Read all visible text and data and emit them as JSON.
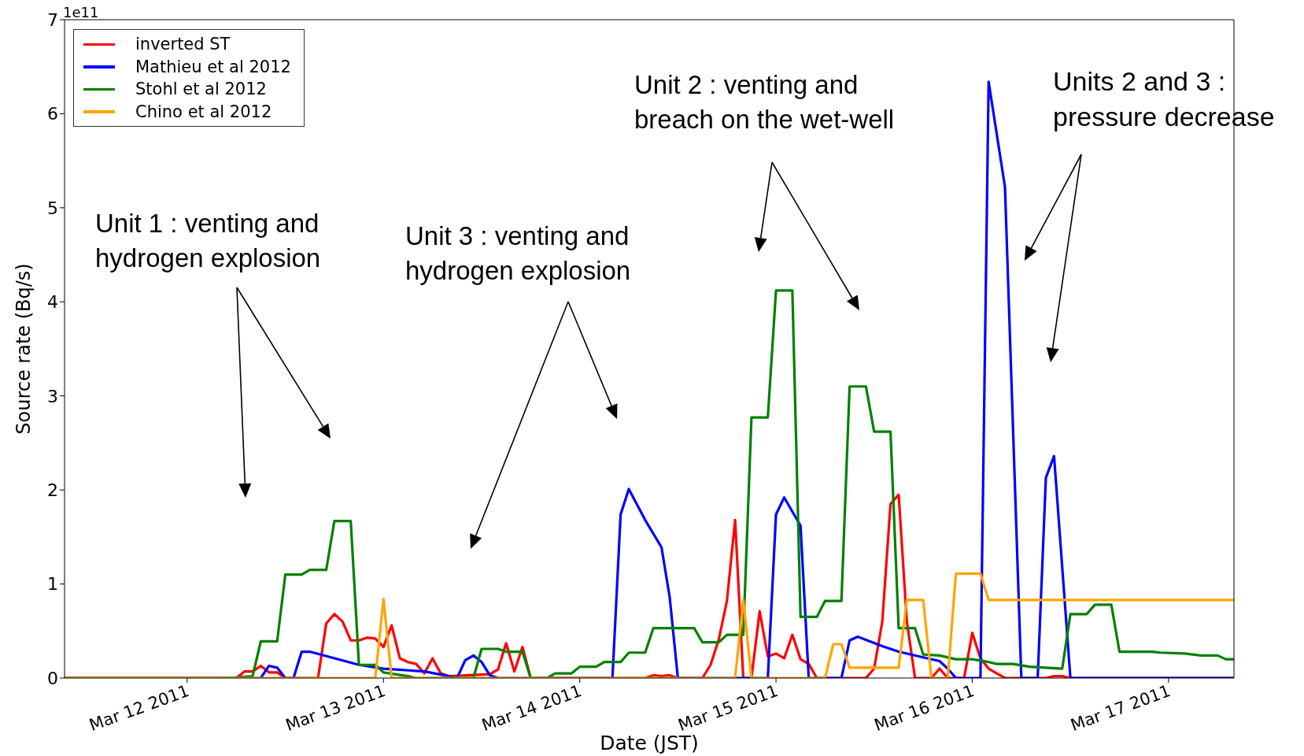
{
  "chart_data": {
    "type": "line",
    "xlabel": "Date (JST)",
    "ylabel": "Source rate (Bq/s)",
    "legend": "top left",
    "marker": "none",
    "xlim": [
      "2011-03-11T09:00",
      "2011-03-17T08:00"
    ],
    "ylim": [
      0,
      7
    ],
    "xticks": [
      {
        "value": "2011-03-12",
        "label": "Mar 12 2011"
      },
      {
        "value": "2011-03-13",
        "label": "Mar 13 2011"
      },
      {
        "value": "2011-03-14",
        "label": "Mar 14 2011"
      },
      {
        "value": "2011-03-15",
        "label": "Mar 15 2011"
      },
      {
        "value": "2011-03-16",
        "label": "Mar 16 2011"
      },
      {
        "value": "2011-03-17",
        "label": "Mar 17 2011"
      }
    ],
    "yticks": [
      0,
      1,
      2,
      3,
      4,
      5,
      6,
      7
    ],
    "annotations": [
      "1e11",
      "Unit 1 : venting and hydrogen explosion",
      "Unit 3 : venting and hydrogen explosion",
      "Unit 2 : venting and breach on the wet-well",
      "Units 2 and 3 : pressure decrease"
    ],
    "series": [
      {
        "name": "inverted ST",
        "color": "#ff0000",
        "x": [
          "2011-03-11T09:00",
          "2011-03-12T06:00",
          "2011-03-12T07:00",
          "2011-03-12T08:00",
          "2011-03-12T09:00",
          "2011-03-12T10:00",
          "2011-03-12T11:00",
          "2011-03-12T12:00",
          "2011-03-12T16:00",
          "2011-03-12T17:00",
          "2011-03-12T18:00",
          "2011-03-12T19:00",
          "2011-03-12T20:00",
          "2011-03-12T21:00",
          "2011-03-12T22:00",
          "2011-03-12T23:00",
          "2011-03-13T00:00",
          "2011-03-13T01:00",
          "2011-03-13T02:00",
          "2011-03-13T03:00",
          "2011-03-13T04:00",
          "2011-03-13T05:00",
          "2011-03-13T06:00",
          "2011-03-13T07:00",
          "2011-03-13T08:00",
          "2011-03-13T13:00",
          "2011-03-13T14:00",
          "2011-03-13T15:00",
          "2011-03-13T16:00",
          "2011-03-13T17:00",
          "2011-03-13T18:00",
          "2011-03-14T08:00",
          "2011-03-14T09:00",
          "2011-03-14T10:00",
          "2011-03-14T11:00",
          "2011-03-14T12:00",
          "2011-03-14T15:00",
          "2011-03-14T16:00",
          "2011-03-14T17:00",
          "2011-03-14T18:00",
          "2011-03-14T19:00",
          "2011-03-14T20:00",
          "2011-03-14T21:00",
          "2011-03-14T22:00",
          "2011-03-14T23:00",
          "2011-03-15T00:00",
          "2011-03-15T01:00",
          "2011-03-15T02:00",
          "2011-03-15T03:00",
          "2011-03-15T04:00",
          "2011-03-15T05:00",
          "2011-03-15T11:00",
          "2011-03-15T12:00",
          "2011-03-15T13:00",
          "2011-03-15T14:00",
          "2011-03-15T15:00",
          "2011-03-15T16:00",
          "2011-03-15T17:00",
          "2011-03-15T19:00",
          "2011-03-15T20:00",
          "2011-03-15T21:00",
          "2011-03-15T23:00",
          "2011-03-16T00:00",
          "2011-03-16T01:00",
          "2011-03-16T02:00",
          "2011-03-16T03:00",
          "2011-03-16T04:00",
          "2011-03-16T09:00",
          "2011-03-16T10:00",
          "2011-03-16T11:00",
          "2011-03-16T12:00",
          "2011-03-17T08:00"
        ],
        "values": [
          0,
          0,
          0.07,
          0.07,
          0.13,
          0.06,
          0.06,
          0,
          0,
          0.58,
          0.68,
          0.6,
          0.4,
          0.4,
          0.43,
          0.42,
          0.33,
          0.56,
          0.21,
          0.17,
          0.15,
          0.05,
          0.21,
          0.05,
          0.02,
          0.04,
          0.09,
          0.37,
          0.07,
          0.33,
          0,
          0,
          0.03,
          0.02,
          0.03,
          0,
          0,
          0.14,
          0.41,
          0.82,
          1.68,
          0,
          0,
          0.71,
          0.23,
          0.26,
          0.21,
          0.46,
          0.2,
          0.15,
          0,
          0,
          0.1,
          0.6,
          1.85,
          1.95,
          0.6,
          0,
          0,
          0.1,
          0,
          0,
          0.48,
          0.21,
          0.1,
          0.05,
          0,
          0,
          0.02,
          0.02,
          0,
          0
        ]
      },
      {
        "name": "Mathieu et al 2012",
        "color": "#0000ff",
        "x": [
          "2011-03-11T09:00",
          "2011-03-12T09:00",
          "2011-03-12T10:00",
          "2011-03-12T11:00",
          "2011-03-12T12:00",
          "2011-03-12T13:00",
          "2011-03-12T14:00",
          "2011-03-12T15:00",
          "2011-03-12T21:00",
          "2011-03-13T00:00",
          "2011-03-13T05:00",
          "2011-03-13T08:00",
          "2011-03-13T09:00",
          "2011-03-13T10:00",
          "2011-03-13T11:00",
          "2011-03-13T12:00",
          "2011-03-13T13:00",
          "2011-03-13T14:00",
          "2011-03-14T04:00",
          "2011-03-14T05:00",
          "2011-03-14T06:00",
          "2011-03-14T08:00",
          "2011-03-14T10:00",
          "2011-03-14T11:00",
          "2011-03-14T12:00",
          "2011-03-14T23:00",
          "2011-03-15T00:00",
          "2011-03-15T01:00",
          "2011-03-15T03:00",
          "2011-03-15T04:00",
          "2011-03-15T08:00",
          "2011-03-15T09:00",
          "2011-03-15T10:00",
          "2011-03-15T13:00",
          "2011-03-15T15:00",
          "2011-03-15T18:00",
          "2011-03-15T20:00",
          "2011-03-15T21:00",
          "2011-03-15T22:00",
          "2011-03-16T01:00",
          "2011-03-16T02:00",
          "2011-03-16T04:00",
          "2011-03-16T06:00",
          "2011-03-16T08:00",
          "2011-03-16T09:00",
          "2011-03-16T10:00",
          "2011-03-16T12:00",
          "2011-03-17T08:00"
        ],
        "values": [
          0,
          0,
          0.13,
          0.11,
          0,
          0,
          0.28,
          0.28,
          0.14,
          0.1,
          0.07,
          0.02,
          0,
          0.19,
          0.24,
          0.17,
          0.03,
          0,
          0,
          1.74,
          2.01,
          1.68,
          1.39,
          0.86,
          0,
          0,
          1.74,
          1.92,
          1.62,
          0,
          0,
          0.4,
          0.44,
          0.34,
          0.28,
          0.22,
          0.18,
          0.1,
          0,
          0,
          6.34,
          5.22,
          0,
          0,
          2.13,
          2.36,
          0,
          0
        ]
      },
      {
        "name": "Stohl et al 2012",
        "color": "#008000",
        "x": [
          "2011-03-11T09:00",
          "2011-03-12T05:00",
          "2011-03-12T08:00",
          "2011-03-12T09:00",
          "2011-03-12T11:00",
          "2011-03-12T12:00",
          "2011-03-12T14:00",
          "2011-03-12T15:00",
          "2011-03-12T17:00",
          "2011-03-12T18:00",
          "2011-03-12T20:00",
          "2011-03-12T21:00",
          "2011-03-12T23:00",
          "2011-03-13T00:00",
          "2011-03-13T03:00",
          "2011-03-13T04:00",
          "2011-03-13T11:00",
          "2011-03-13T12:00",
          "2011-03-13T14:00",
          "2011-03-13T15:00",
          "2011-03-13T17:00",
          "2011-03-13T18:00",
          "2011-03-13T20:00",
          "2011-03-13T21:00",
          "2011-03-13T23:00",
          "2011-03-14T00:00",
          "2011-03-14T02:00",
          "2011-03-14T03:00",
          "2011-03-14T05:00",
          "2011-03-14T06:00",
          "2011-03-14T08:00",
          "2011-03-14T09:00",
          "2011-03-14T14:00",
          "2011-03-14T15:00",
          "2011-03-14T17:00",
          "2011-03-14T18:00",
          "2011-03-14T20:00",
          "2011-03-14T21:00",
          "2011-03-14T23:00",
          "2011-03-15T00:00",
          "2011-03-15T02:00",
          "2011-03-15T03:00",
          "2011-03-15T05:00",
          "2011-03-15T06:00",
          "2011-03-15T08:00",
          "2011-03-15T09:00",
          "2011-03-15T11:00",
          "2011-03-15T12:00",
          "2011-03-15T14:00",
          "2011-03-15T15:00",
          "2011-03-15T17:00",
          "2011-03-15T18:00",
          "2011-03-15T20:00",
          "2011-03-15T22:00",
          "2011-03-16T00:00",
          "2011-03-16T02:00",
          "2011-03-16T03:00",
          "2011-03-16T05:00",
          "2011-03-16T07:00",
          "2011-03-16T11:00",
          "2011-03-16T12:00",
          "2011-03-16T14:00",
          "2011-03-16T15:00",
          "2011-03-16T17:00",
          "2011-03-16T18:00",
          "2011-03-16T22:00",
          "2011-03-16T23:00",
          "2011-03-17T02:00",
          "2011-03-17T04:00",
          "2011-03-17T06:00",
          "2011-03-17T07:00",
          "2011-03-17T08:00"
        ],
        "values": [
          0,
          0,
          0.02,
          0.39,
          0.39,
          1.1,
          1.1,
          1.15,
          1.15,
          1.67,
          1.67,
          0.14,
          0.14,
          0.06,
          0.02,
          0,
          0,
          0.31,
          0.31,
          0.28,
          0.28,
          0,
          0,
          0.05,
          0.05,
          0.12,
          0.12,
          0.17,
          0.17,
          0.27,
          0.27,
          0.53,
          0.53,
          0.38,
          0.38,
          0.46,
          0.46,
          2.77,
          2.77,
          4.12,
          4.12,
          0.65,
          0.65,
          0.82,
          0.82,
          3.1,
          3.1,
          2.62,
          2.62,
          0.53,
          0.53,
          0.25,
          0.24,
          0.2,
          0.2,
          0.17,
          0.15,
          0.15,
          0.12,
          0.1,
          0.68,
          0.68,
          0.78,
          0.78,
          0.28,
          0.28,
          0.27,
          0.26,
          0.24,
          0.24,
          0.2,
          0.2
        ]
      },
      {
        "name": "Chino et al 2012",
        "color": "#ffa500",
        "x": [
          "2011-03-11T09:00",
          "2011-03-12T23:00",
          "2011-03-13T00:00",
          "2011-03-13T01:00",
          "2011-03-14T19:00",
          "2011-03-14T20:00",
          "2011-03-14T21:00",
          "2011-03-15T06:00",
          "2011-03-15T07:00",
          "2011-03-15T08:00",
          "2011-03-15T09:00",
          "2011-03-15T15:00",
          "2011-03-15T16:00",
          "2011-03-15T18:00",
          "2011-03-15T19:00",
          "2011-03-15T21:00",
          "2011-03-15T22:00",
          "2011-03-16T01:00",
          "2011-03-16T02:00",
          "2011-03-17T08:00"
        ],
        "values": [
          0,
          0,
          0.84,
          0,
          0,
          0.83,
          0,
          0,
          0.36,
          0.36,
          0.11,
          0.11,
          0.83,
          0.83,
          0,
          0,
          1.11,
          1.11,
          0.83,
          0.83
        ]
      }
    ]
  }
}
